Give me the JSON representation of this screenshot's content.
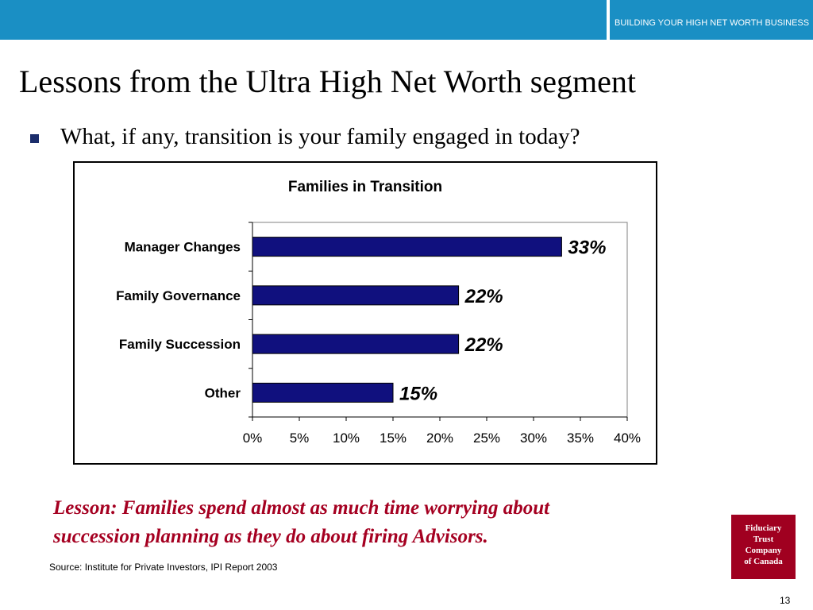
{
  "header": {
    "tagline": "BUILDING YOUR HIGH NET WORTH BUSINESS",
    "colors": {
      "bar": "#1a8fc4",
      "text": "#ffffff"
    }
  },
  "slide": {
    "title": "Lessons from the Ultra High Net Worth segment",
    "bullet": "What, if any, transition is your family engaged in today?",
    "lesson_line1": "Lesson:  Families spend almost as much time worrying about",
    "lesson_line2": "succession planning as they do about firing Advisors.",
    "source": "Source: Institute for Private Investors, IPI Report 2003",
    "page_number": "13",
    "colors": {
      "lesson": "#a50021",
      "bullet": "#1b2d6b"
    }
  },
  "logo": {
    "lines": [
      "Fiduciary",
      "Trust",
      "Company",
      "of Canada"
    ],
    "color": "#a00020"
  },
  "chart_data": {
    "type": "bar",
    "orientation": "horizontal",
    "title": "Families in Transition",
    "categories": [
      "Manager Changes",
      "Family Governance",
      "Family Succession",
      "Other"
    ],
    "values": [
      33,
      22,
      22,
      15
    ],
    "value_labels": [
      "33%",
      "22%",
      "22%",
      "15%"
    ],
    "xlim": [
      0,
      40
    ],
    "x_ticks": [
      "0%",
      "5%",
      "10%",
      "15%",
      "20%",
      "25%",
      "30%",
      "35%",
      "40%"
    ],
    "xlabel": "",
    "ylabel": "",
    "grid": false,
    "legend": "none",
    "bar_color": "#10107e"
  }
}
